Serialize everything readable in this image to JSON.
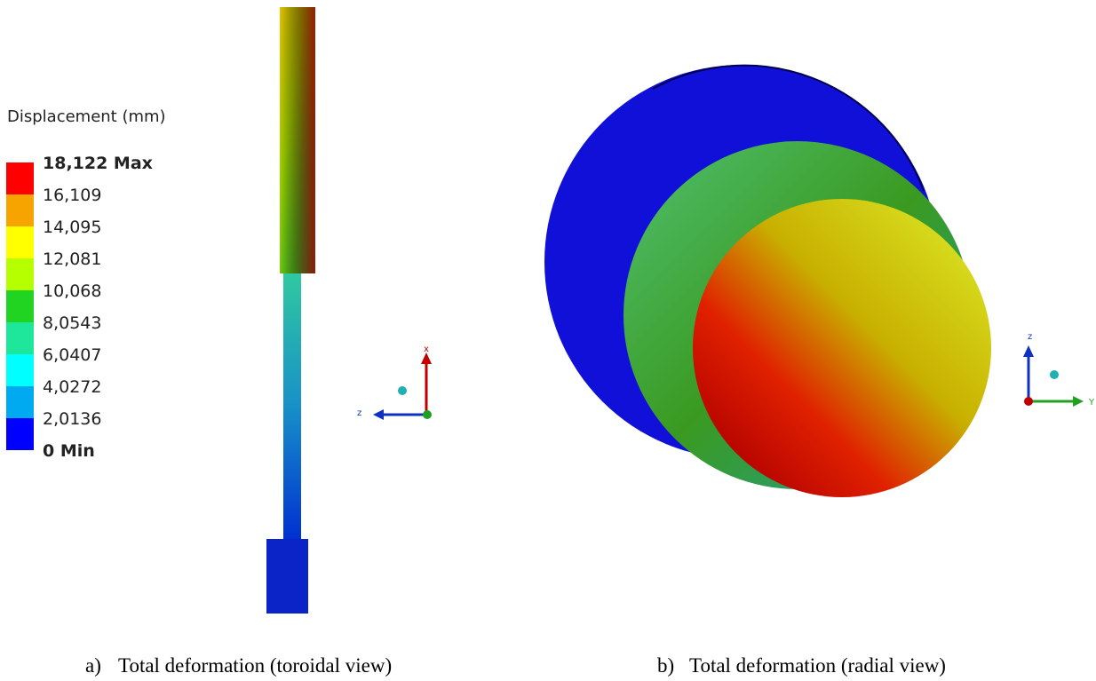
{
  "legend": {
    "title": "Displacement (mm)",
    "labels": [
      "18,122 Max",
      "16,109",
      "14,095",
      "12,081",
      "10,068",
      "8,0543",
      "6,0407",
      "4,0272",
      "2,0136",
      "0 Min"
    ],
    "band_colors": [
      "#ff0000",
      "#f7a400",
      "#ffff00",
      "#b5ff00",
      "#21d421",
      "#1ee69b",
      "#00ffff",
      "#00aaf0",
      "#0000ff"
    ]
  },
  "left_view": {
    "triad": {
      "vertical": "x",
      "horizontal": "z"
    },
    "caption": {
      "marker": "a)",
      "text": "Total deformation (toroidal view)"
    }
  },
  "right_view": {
    "triad": {
      "vertical": "z",
      "horizontal": "Y"
    },
    "caption": {
      "marker": "b)",
      "text": "Total deformation (radial view)"
    }
  }
}
